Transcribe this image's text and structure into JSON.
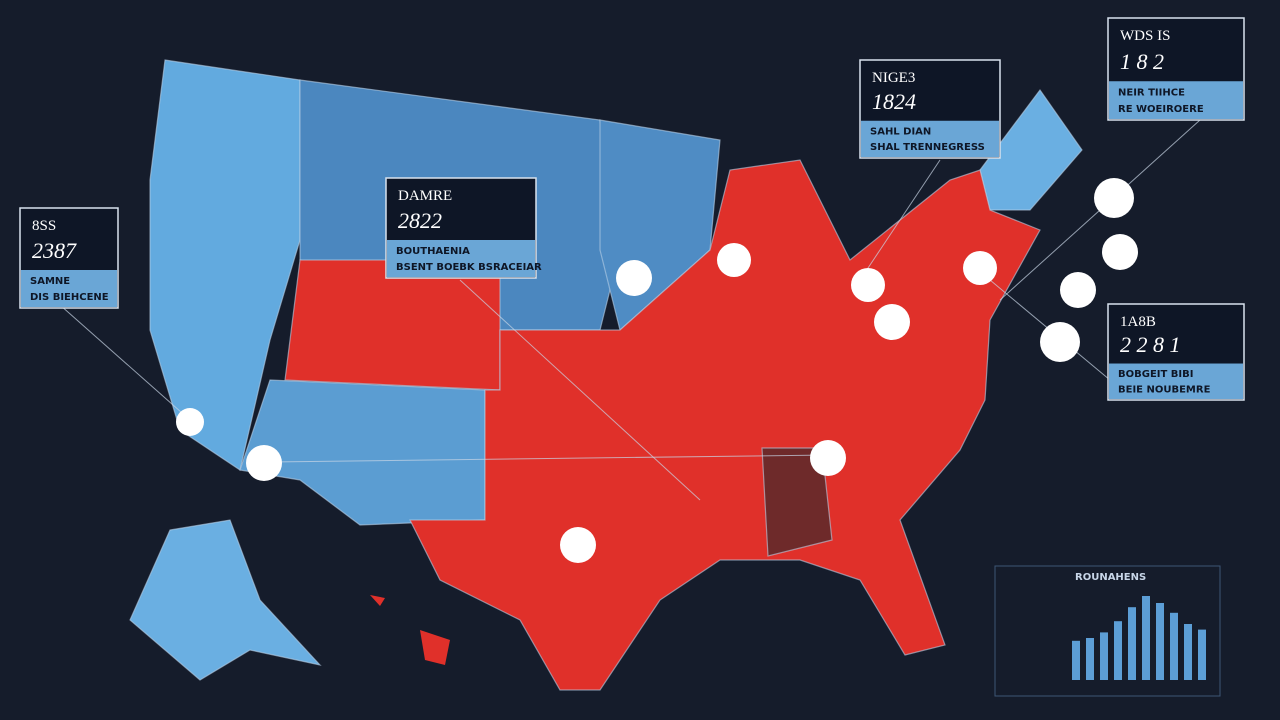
{
  "panels": [
    {
      "title": "8SS",
      "number": "2387",
      "line1": "SAMNE",
      "line2": "DIS BIEHCENE"
    },
    {
      "title": "DAMRE",
      "number": "2822",
      "line1": "BOUTHAENIA",
      "line2": "BSENT BOEBK BSRACEIAR"
    },
    {
      "title": "NIGE3",
      "number": "1824",
      "line1": "SAHL DIAN",
      "line2": "SHAL TRENNEGRESS"
    },
    {
      "title": "WDS IS",
      "number": "1 8 2",
      "line1": "NEIR TIIHCE",
      "line2": "RE WOEIROERE"
    },
    {
      "title": "1A8B",
      "number": "2 2 8 1",
      "line1": "BOBGEIT BIBI",
      "line2": "BEIE NOUBEMRE"
    }
  ],
  "mini_chart": {
    "title": "ROUNAHENS",
    "values": [
      28,
      30,
      34,
      42,
      52,
      60,
      55,
      48,
      40,
      36
    ]
  }
}
